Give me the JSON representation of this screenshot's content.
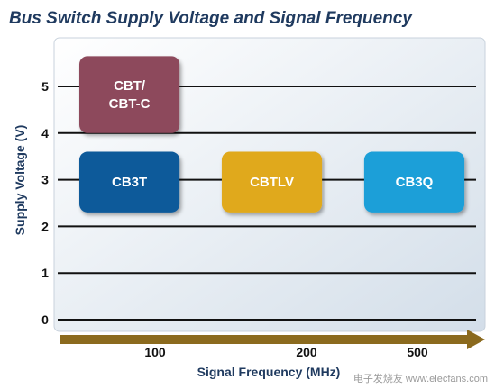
{
  "chart_data": {
    "type": "range-box",
    "title": "Bus Switch Supply Voltage and Signal Frequency",
    "xlabel": "Signal Frequency (MHz)",
    "ylabel": "Supply Voltage (V)",
    "x_ticks": [
      "100",
      "200",
      "500"
    ],
    "y_ticks": [
      0,
      1,
      2,
      3,
      4,
      5
    ],
    "ylim": [
      0,
      5.8
    ],
    "grid": true,
    "boxes": [
      {
        "label_lines": [
          "CBT/",
          "CBT-C"
        ],
        "x_from": 0,
        "x_to": 0.95,
        "y_from": 4.0,
        "y_to": 5.65,
        "color": "#8d4a5c"
      },
      {
        "label_lines": [
          "CB3T"
        ],
        "x_from": 0,
        "x_to": 0.95,
        "y_from": 2.3,
        "y_to": 3.6,
        "color": "#0d5a9a"
      },
      {
        "label_lines": [
          "CBTLV"
        ],
        "x_from": 1.35,
        "x_to": 2.3,
        "y_from": 2.3,
        "y_to": 3.6,
        "color": "#e0a91e"
      },
      {
        "label_lines": [
          "CB3Q"
        ],
        "x_from": 2.7,
        "x_to": 3.65,
        "y_from": 2.3,
        "y_to": 3.6,
        "color": "#1a9fd8"
      }
    ]
  },
  "colors": {
    "frame_gradient_start": "#ffffff",
    "frame_gradient_end": "#d3dee9",
    "axis_arrow": "#8b6a1e",
    "title": "#1f3a5f"
  },
  "watermark": "电子发烧友 www.elecfans.com"
}
